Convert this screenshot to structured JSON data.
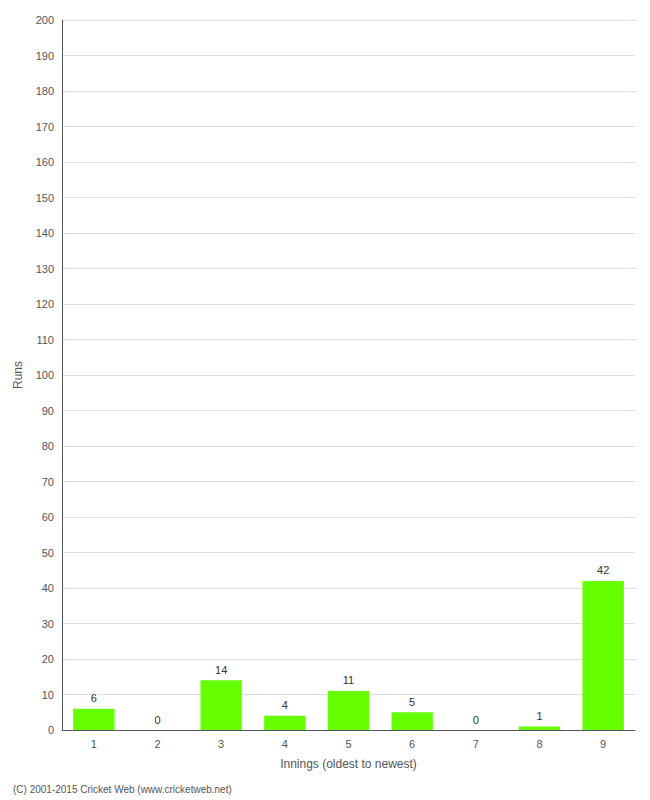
{
  "chart_data": {
    "type": "bar",
    "categories": [
      "1",
      "2",
      "3",
      "4",
      "5",
      "6",
      "7",
      "8",
      "9"
    ],
    "values": [
      6,
      0,
      14,
      4,
      11,
      5,
      0,
      1,
      42
    ],
    "color": "#66ff00",
    "xlabel": "Innings (oldest to newest)",
    "ylabel": "Runs",
    "ylim": [
      0,
      200
    ],
    "yticks": [
      0,
      10,
      20,
      30,
      40,
      50,
      60,
      70,
      80,
      90,
      100,
      110,
      120,
      130,
      140,
      150,
      160,
      170,
      180,
      190,
      200
    ],
    "grid": true,
    "data_labels": true,
    "annotations": [
      "(C) 2001-2015 Cricket Web (www.cricketweb.net)"
    ]
  }
}
